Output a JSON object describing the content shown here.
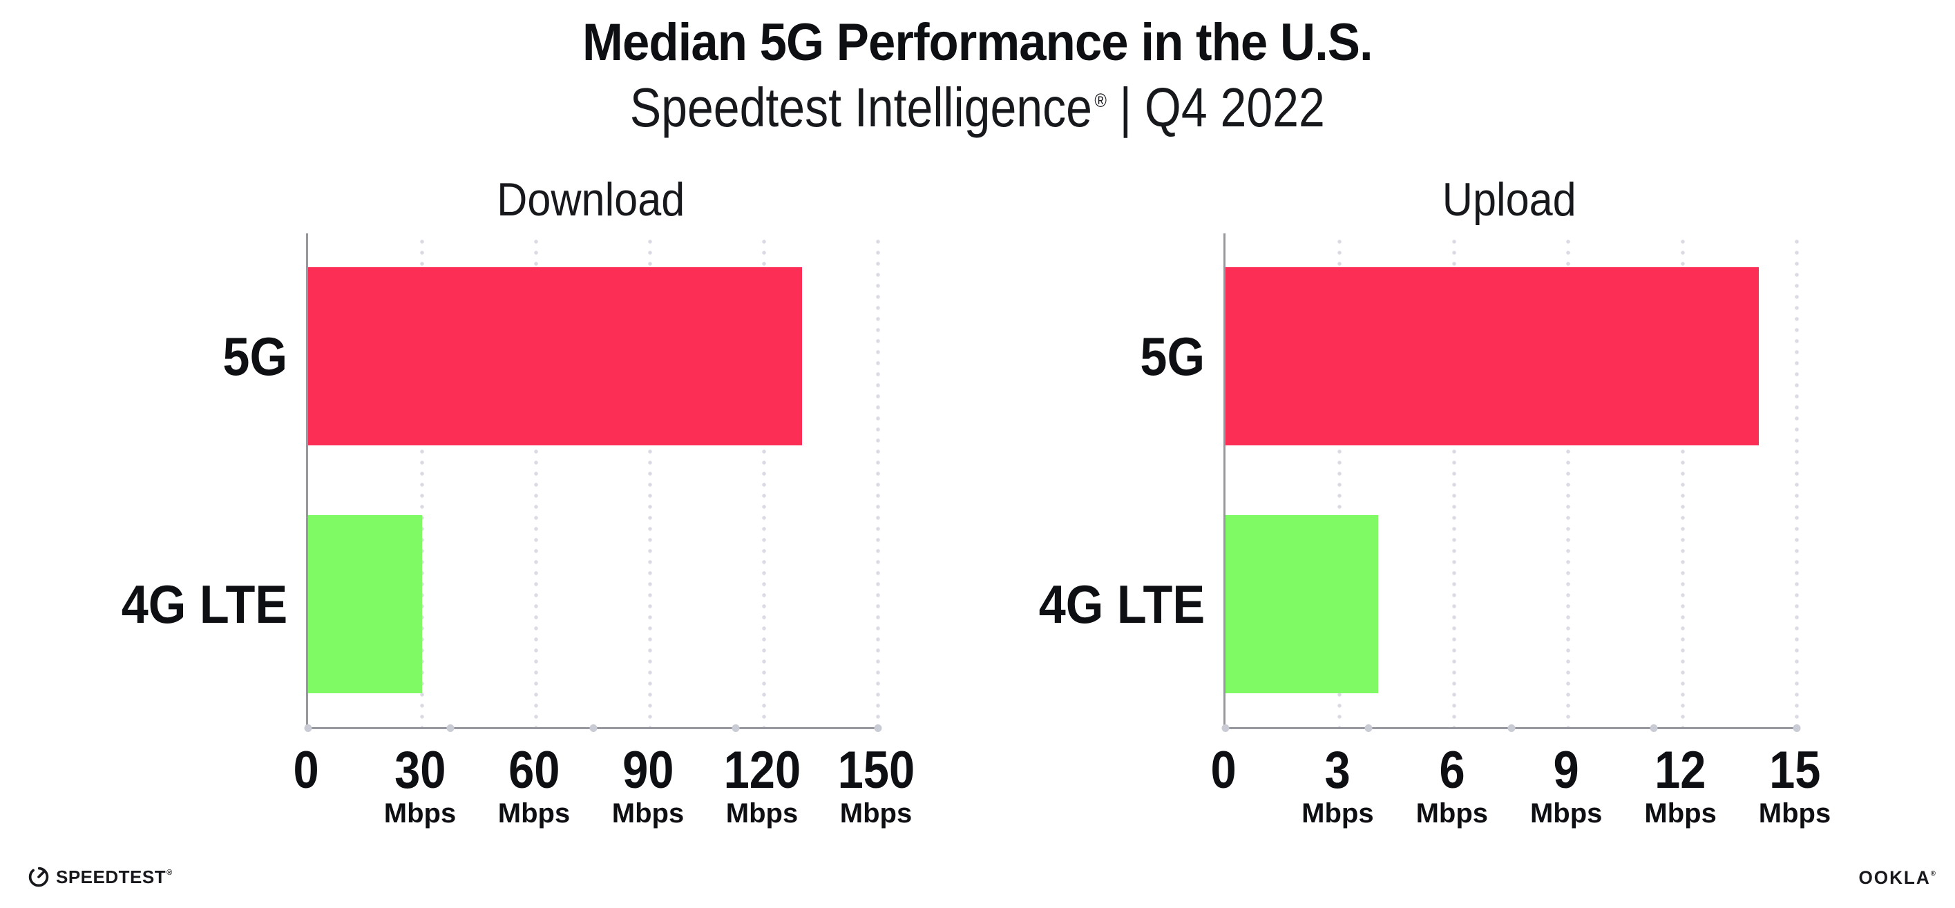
{
  "header": {
    "title": "Median 5G Performance in the U.S.",
    "subtitle_brand": "Speedtest Intelligence",
    "subtitle_reg": "®",
    "subtitle_separator": "|",
    "subtitle_period": "Q4 2022"
  },
  "chart_data": [
    {
      "type": "bar",
      "orientation": "horizontal",
      "title": "Download",
      "categories": [
        "5G",
        "4G LTE"
      ],
      "values": [
        130,
        30
      ],
      "unit": "Mbps",
      "xlim": [
        0,
        150
      ],
      "xticks": [
        0,
        30,
        60,
        90,
        120,
        150
      ],
      "bar_colors": [
        "#FC2E56",
        "#7FF964"
      ],
      "grid": "dotted-vertical-at-ticks",
      "legend": "none"
    },
    {
      "type": "bar",
      "orientation": "horizontal",
      "title": "Upload",
      "categories": [
        "5G",
        "4G LTE"
      ],
      "values": [
        14,
        4
      ],
      "unit": "Mbps",
      "xlim": [
        0,
        15
      ],
      "xticks": [
        0,
        3,
        6,
        9,
        12,
        15
      ],
      "bar_colors": [
        "#FC2E56",
        "#7FF964"
      ],
      "grid": "dotted-vertical-at-ticks",
      "legend": "none"
    }
  ],
  "footer": {
    "speedtest_logo_text": "SPEEDTEST",
    "speedtest_reg": "®",
    "ookla_logo_text": "OOKLA",
    "ookla_reg": "®"
  },
  "colors": {
    "bar_5g": "#FC2E56",
    "bar_4g_lte": "#7FF964",
    "axis": "#97989F",
    "gridline_dots": "#D9DAE3",
    "text": "#0E0F12"
  }
}
